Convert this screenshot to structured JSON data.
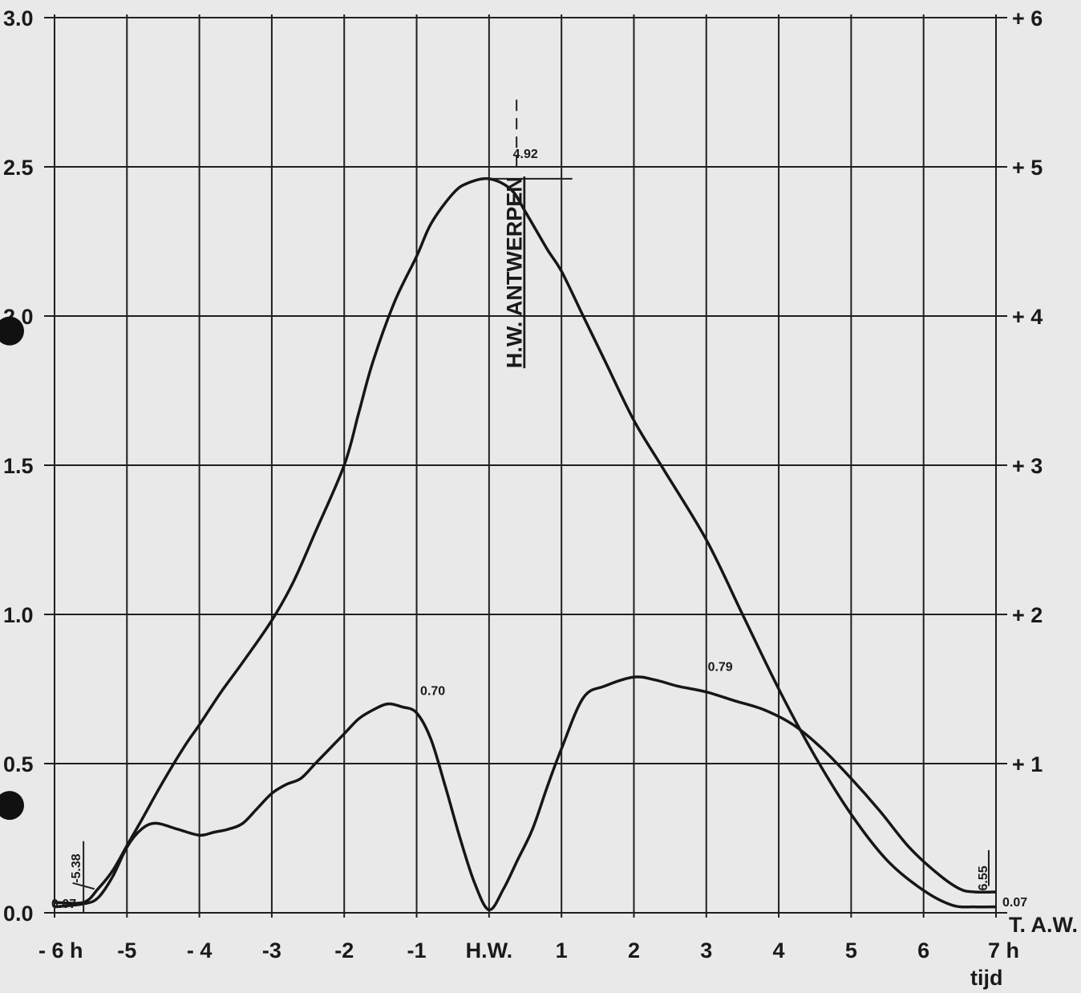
{
  "chart_data": {
    "type": "line",
    "xlabel": "tijd",
    "x_tick_labels": [
      "- 6 h",
      "-5",
      "- 4",
      "-3",
      "-2",
      "-1",
      "H.W.",
      "1",
      "2",
      "3",
      "4",
      "5",
      "6",
      "7 h"
    ],
    "x_ticks": [
      -6,
      -5,
      -4,
      -3,
      -2,
      -1,
      0,
      1,
      2,
      3,
      4,
      5,
      6,
      7
    ],
    "xlim": [
      -6,
      7
    ],
    "left_axis": {
      "ylim": [
        0,
        3.0
      ],
      "tick_labels": [
        "0.0",
        "0.5",
        "1.0",
        "1.5",
        "2.0",
        "2.5",
        "3.0"
      ]
    },
    "right_axis": {
      "ylim": [
        0,
        6
      ],
      "tick_labels": [
        "+ 1",
        "+ 2",
        "+ 3",
        "+ 4",
        "+ 5",
        "+ 6"
      ],
      "baseline_label": "T. A.W."
    },
    "grid": true,
    "series": [
      {
        "axis": "right",
        "x": [
          -6.0,
          -5.6,
          -5.4,
          -5.2,
          -5.0,
          -4.8,
          -4.5,
          -4.2,
          -4.0,
          -3.7,
          -3.4,
          -3.0,
          -2.7,
          -2.4,
          -2.0,
          -1.8,
          -1.6,
          -1.3,
          -1.0,
          -0.8,
          -0.5,
          -0.3,
          0.0,
          0.3,
          0.5,
          0.8,
          1.0,
          1.3,
          1.6,
          2.0,
          2.4,
          3.0,
          3.5,
          4.0,
          4.5,
          5.0,
          5.5,
          6.0,
          6.4,
          6.7,
          7.0
        ],
        "y": [
          0.07,
          0.07,
          0.16,
          0.28,
          0.45,
          0.62,
          0.88,
          1.12,
          1.26,
          1.48,
          1.68,
          1.96,
          2.22,
          2.55,
          3.0,
          3.35,
          3.7,
          4.1,
          4.4,
          4.62,
          4.82,
          4.89,
          4.92,
          4.85,
          4.7,
          4.45,
          4.3,
          4.0,
          3.7,
          3.3,
          2.98,
          2.5,
          2.0,
          1.5,
          1.05,
          0.66,
          0.35,
          0.15,
          0.05,
          0.04,
          0.04
        ]
      },
      {
        "axis": "left",
        "x": [
          -6.0,
          -5.6,
          -5.4,
          -5.2,
          -5.0,
          -4.8,
          -4.6,
          -4.3,
          -4.0,
          -3.8,
          -3.6,
          -3.4,
          -3.2,
          -3.0,
          -2.8,
          -2.6,
          -2.4,
          -2.2,
          -2.0,
          -1.8,
          -1.6,
          -1.4,
          -1.2,
          -1.0,
          -0.8,
          -0.6,
          -0.4,
          -0.2,
          0.0,
          0.2,
          0.4,
          0.6,
          0.8,
          1.0,
          1.3,
          1.6,
          2.0,
          2.3,
          2.6,
          3.0,
          3.4,
          3.8,
          4.2,
          4.6,
          5.0,
          5.4,
          5.8,
          6.2,
          6.5,
          6.7,
          7.0
        ],
        "y": [
          0.02,
          0.03,
          0.05,
          0.12,
          0.22,
          0.28,
          0.3,
          0.28,
          0.26,
          0.27,
          0.28,
          0.3,
          0.35,
          0.4,
          0.43,
          0.45,
          0.5,
          0.55,
          0.6,
          0.65,
          0.68,
          0.7,
          0.69,
          0.67,
          0.58,
          0.42,
          0.25,
          0.1,
          0.01,
          0.08,
          0.18,
          0.28,
          0.42,
          0.55,
          0.72,
          0.76,
          0.79,
          0.78,
          0.76,
          0.74,
          0.71,
          0.68,
          0.63,
          0.55,
          0.45,
          0.34,
          0.22,
          0.13,
          0.08,
          0.07,
          0.07
        ]
      }
    ],
    "annotations": [
      {
        "text": "4.92"
      },
      {
        "text": "0.70"
      },
      {
        "text": "0.79"
      },
      {
        "text": "0.07"
      },
      {
        "text": "0.07"
      },
      {
        "text": "-5.38"
      },
      {
        "text": "6.55"
      },
      {
        "text": "H.W. ANTWERPEN"
      }
    ]
  }
}
